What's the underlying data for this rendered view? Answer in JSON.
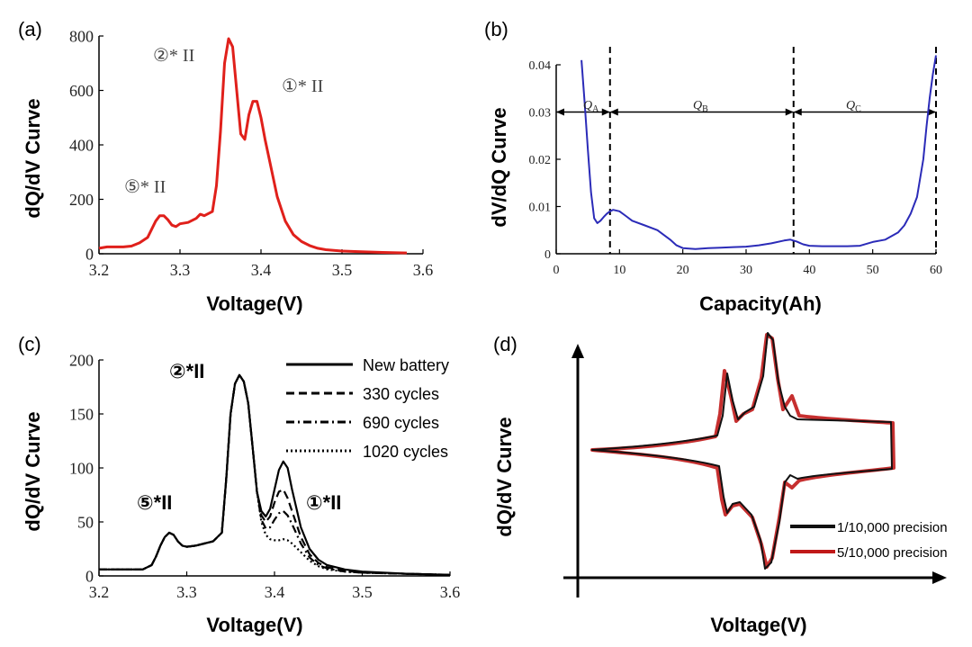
{
  "chart_data": [
    {
      "panel": "(a)",
      "type": "line",
      "xlabel": "Voltage(V)",
      "ylabel": "dQ/dV Curve",
      "xlim": [
        3.2,
        3.6
      ],
      "ylim": [
        0,
        800
      ],
      "xticks": [
        "3.2",
        "3.3",
        "3.4",
        "3.5",
        "3.6"
      ],
      "yticks": [
        "0",
        "200",
        "400",
        "600",
        "800"
      ],
      "annotations": [
        "②* II",
        "①* II",
        "⑤* II"
      ],
      "colors": {
        "line": "#e0201b"
      },
      "series": [
        {
          "x": [
            3.2,
            3.21,
            3.22,
            3.23,
            3.24,
            3.25,
            3.26,
            3.265,
            3.27,
            3.275,
            3.28,
            3.285,
            3.29,
            3.295,
            3.3,
            3.31,
            3.32,
            3.325,
            3.33,
            3.34,
            3.345,
            3.35,
            3.355,
            3.36,
            3.365,
            3.37,
            3.375,
            3.38,
            3.385,
            3.39,
            3.395,
            3.4,
            3.405,
            3.41,
            3.42,
            3.43,
            3.44,
            3.45,
            3.46,
            3.47,
            3.48,
            3.5,
            3.52,
            3.55,
            3.58
          ],
          "y": [
            20,
            25,
            25,
            25,
            28,
            40,
            60,
            90,
            120,
            140,
            140,
            125,
            105,
            100,
            110,
            115,
            130,
            145,
            140,
            155,
            250,
            450,
            700,
            790,
            760,
            600,
            440,
            420,
            510,
            560,
            560,
            500,
            420,
            350,
            210,
            120,
            70,
            45,
            30,
            20,
            15,
            10,
            8,
            5,
            3
          ]
        }
      ]
    },
    {
      "panel": "(b)",
      "type": "line",
      "xlabel": "Capacity(Ah)",
      "ylabel": "dV/dQ Curve",
      "xlim": [
        0,
        60
      ],
      "ylim": [
        0,
        0.04
      ],
      "xticks": [
        "0",
        "10",
        "20",
        "30",
        "40",
        "50",
        "60"
      ],
      "yticks": [
        "0",
        "0.01",
        "0.02",
        "0.03",
        "0.04"
      ],
      "region_labels": [
        "Q",
        "A",
        "Q",
        "B",
        "Q",
        "C"
      ],
      "dividers": [
        8.5,
        37.5,
        60
      ],
      "colors": {
        "line": "#2b2bb8"
      },
      "series": [
        {
          "x": [
            4,
            4.5,
            5,
            5.5,
            6,
            6.5,
            7,
            7.5,
            8,
            8.5,
            9,
            10,
            11,
            12,
            14,
            16,
            18,
            19,
            20,
            22,
            24,
            26,
            28,
            30,
            32,
            34,
            36,
            37,
            38,
            39,
            40,
            42,
            44,
            46,
            48,
            50,
            52,
            54,
            55,
            56,
            57,
            57.5,
            58,
            58.5,
            59,
            59.5,
            60
          ],
          "y": [
            0.041,
            0.032,
            0.022,
            0.013,
            0.0075,
            0.0065,
            0.007,
            0.0078,
            0.0085,
            0.009,
            0.0093,
            0.009,
            0.008,
            0.007,
            0.006,
            0.005,
            0.003,
            0.0018,
            0.0012,
            0.001,
            0.0012,
            0.0013,
            0.0014,
            0.0015,
            0.0018,
            0.0022,
            0.0028,
            0.003,
            0.0026,
            0.002,
            0.0017,
            0.0016,
            0.0016,
            0.0016,
            0.0017,
            0.0025,
            0.003,
            0.0045,
            0.006,
            0.0085,
            0.012,
            0.016,
            0.02,
            0.027,
            0.033,
            0.038,
            0.042
          ]
        }
      ]
    },
    {
      "panel": "(c)",
      "type": "line",
      "xlabel": "Voltage(V)",
      "ylabel": "dQ/dV Curve",
      "xlim": [
        3.2,
        3.6
      ],
      "ylim": [
        0,
        200
      ],
      "xticks": [
        "3.2",
        "3.3",
        "3.4",
        "3.5",
        "3.6"
      ],
      "yticks": [
        "0",
        "50",
        "100",
        "150",
        "200"
      ],
      "annotations": [
        "②*II",
        "⑤*II",
        "①*II"
      ],
      "x": [
        3.2,
        3.21,
        3.22,
        3.23,
        3.24,
        3.25,
        3.26,
        3.265,
        3.27,
        3.275,
        3.28,
        3.285,
        3.29,
        3.295,
        3.3,
        3.31,
        3.32,
        3.33,
        3.34,
        3.345,
        3.35,
        3.355,
        3.36,
        3.365,
        3.37,
        3.375,
        3.38,
        3.385,
        3.39,
        3.395,
        3.4,
        3.405,
        3.41,
        3.415,
        3.42,
        3.43,
        3.44,
        3.45,
        3.46,
        3.48,
        3.5,
        3.55,
        3.6
      ],
      "series": [
        {
          "name": "New battery",
          "dash": "solid",
          "y": [
            6,
            6,
            6,
            6,
            6,
            6,
            10,
            18,
            28,
            36,
            40,
            38,
            32,
            28,
            27,
            28,
            30,
            32,
            40,
            90,
            150,
            178,
            186,
            180,
            160,
            120,
            78,
            60,
            55,
            62,
            80,
            98,
            106,
            100,
            80,
            45,
            25,
            15,
            10,
            6,
            4,
            2,
            1
          ]
        },
        {
          "name": "330 cycles",
          "dash": "dashed",
          "y": [
            6,
            6,
            6,
            6,
            6,
            6,
            10,
            18,
            28,
            36,
            40,
            38,
            32,
            28,
            27,
            28,
            30,
            32,
            40,
            90,
            150,
            178,
            186,
            180,
            160,
            120,
            78,
            56,
            50,
            55,
            68,
            78,
            80,
            72,
            60,
            36,
            20,
            12,
            8,
            5,
            3,
            2,
            1
          ]
        },
        {
          "name": "690 cycles",
          "dash": "dashdot",
          "y": [
            6,
            6,
            6,
            6,
            6,
            6,
            10,
            18,
            28,
            36,
            40,
            38,
            32,
            28,
            27,
            28,
            30,
            32,
            40,
            90,
            150,
            178,
            186,
            180,
            160,
            120,
            78,
            52,
            44,
            45,
            52,
            58,
            60,
            56,
            48,
            30,
            17,
            10,
            7,
            4,
            3,
            2,
            1
          ]
        },
        {
          "name": "1020 cycles",
          "dash": "dotted",
          "y": [
            6,
            6,
            6,
            6,
            6,
            6,
            10,
            18,
            28,
            36,
            40,
            38,
            32,
            28,
            27,
            28,
            30,
            32,
            40,
            90,
            150,
            178,
            186,
            180,
            160,
            120,
            78,
            50,
            38,
            34,
            33,
            33,
            34,
            33,
            30,
            22,
            14,
            9,
            6,
            4,
            3,
            2,
            1
          ]
        }
      ]
    },
    {
      "panel": "(d)",
      "type": "line",
      "xlabel": "Voltage(V)",
      "ylabel": "dQ/dV Curve",
      "legend": [
        "1/10,000 precision",
        "5/10,000 precision"
      ],
      "colors": {
        "series1": "#111111",
        "series2": "#c01818"
      },
      "legend_placement": "bottom-right"
    }
  ]
}
